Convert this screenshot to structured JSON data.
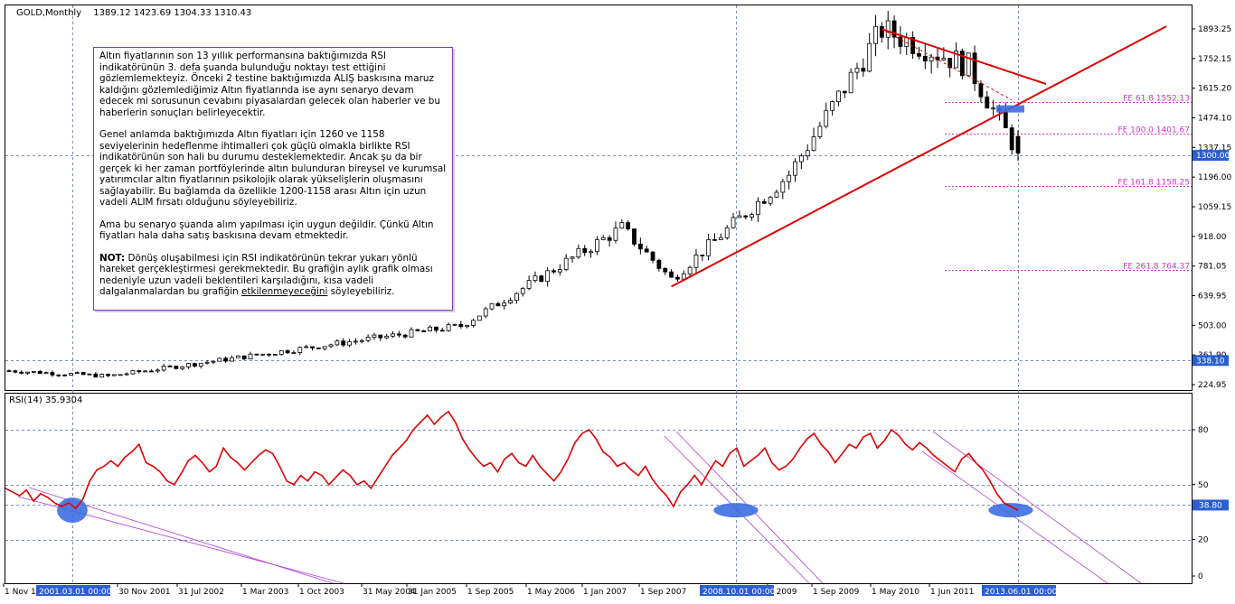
{
  "header": {
    "symbol": "GOLD,Monthly",
    "ohlc": "1389.12 1423.69 1304.33 1310.43"
  },
  "price_axis": {
    "ticks": [
      "1893.25",
      "1752.15",
      "1615.20",
      "1474.10",
      "1337.15",
      "1196.00",
      "1059.15",
      "918.00",
      "781.05",
      "639.95",
      "503.00",
      "361.90",
      "224.95"
    ]
  },
  "price_badges": [
    {
      "text": "1300.00",
      "value": 1300.0
    },
    {
      "text": "338.10",
      "value": 338.1
    }
  ],
  "fe_levels": [
    {
      "text": "FE 61.8 1552.13",
      "value": 1552.13
    },
    {
      "text": "FE 100.0 1401.67",
      "value": 1401.67
    },
    {
      "text": "FE 161.8 1158.25",
      "value": 1158.25
    },
    {
      "text": "FE 261.8 764.37",
      "value": 764.37
    }
  ],
  "rsi": {
    "label": "RSI(14) 35.9304",
    "ticks": [
      "80",
      "50",
      "20",
      "0"
    ],
    "badge": {
      "text": "38.80",
      "value": 38.8
    }
  },
  "time_axis": {
    "labels": [
      "1 Nov 19",
      "30 Nov 2001",
      "31 Jul 2002",
      "1 Mar 2003",
      "1 Oct 2003",
      "31 May 2004",
      "31 Jan 2005",
      "1 Sep 2005",
      "1 May 2006",
      "1 Jan 2007",
      "1 Sep 2007",
      "n 2009",
      "1 Sep 2009",
      "1 May 2010",
      "1 Jun 2011"
    ],
    "highlighted": [
      "2001.03.01 00:00",
      "2008.10.01 00:00",
      "2013.06.01 00:00"
    ]
  },
  "note": {
    "p1": "Altın fiyatlarının son 13 yıllık performansına baktığımızda RSI indikatörünün 3. defa şuanda bulunduğu noktayı test ettiğini gözlemlemekteyiz. Önceki 2 testine baktığımızda ALIŞ baskısına maruz kaldığını gözlemlediğimiz Altın fiyatlarında ise aynı senaryo devam edecek mi sorusunun cevabını piyasalardan gelecek olan haberler ve bu haberlerin sonuçları belirleyecektir.",
    "p2": "Genel anlamda baktığımızda Altın fiyatları için 1260 ve 1158 seviyelerinin hedeflenme ihtimalleri çok güçlü olmakla birlikte RSI indikatörünün son hali bu durumu desteklemektedir. Ancak şu da bir gerçek ki her zaman portföylerinde altın bulunduran bireysel ve kurumsal yatırımcılar altın fiyatlarının psikolojik olarak yükselişlerin oluşmasını sağlayabilir. Bu bağlamda da özellikle 1200-1158 arası Altın için uzun vadeli ALIM fırsatı olduğunu söyleyebiliriz.",
    "p3": "Ama bu senaryo şuanda alım yapılması için uygun değildir. Çünkü Altın fiyatları hala daha satış baskısına devam etmektedir.",
    "p4_bold": "NOT:",
    "p4_a": " Dönüş oluşabilmesi için RSI indikatörünün tekrar yukarı yönlü hareket gerçekleştirmesi gerekmektedir. Bu grafiğin aylık grafik olması nedeniyle uzun vadeli beklentileri karşıladığını, kısa vadeli dalgalanmalardan bu grafiğin ",
    "p4_u": "etkilenmeyeceğini",
    "p4_b": " söyleyebiliriz."
  },
  "colors": {
    "candle": "#000000",
    "trend": "#e00000",
    "rsi": "#e00000",
    "fe": "#cc33cc",
    "channel": "#b040d0",
    "highlight": "#3d6ee0",
    "badge": "#2b5fcf"
  },
  "chart_data": [
    {
      "type": "candlestick",
      "title": "GOLD,Monthly",
      "x_range": [
        "1999-11",
        "2013-06"
      ],
      "ylim": [
        224.95,
        1893.25
      ],
      "key_points": [
        {
          "x": "2001-03",
          "close": 265
        },
        {
          "x": "2005-12",
          "close": 500
        },
        {
          "x": "2008-02",
          "close": 960
        },
        {
          "x": "2008-10",
          "close": 720
        },
        {
          "x": "2010-05",
          "close": 1210
        },
        {
          "x": "2011-08",
          "close": 1890
        },
        {
          "x": "2012-10",
          "close": 1720
        },
        {
          "x": "2013-06",
          "close": 1310.43
        }
      ],
      "last_bar": {
        "open": 1389.12,
        "high": 1423.69,
        "low": 1304.33,
        "close": 1310.43
      }
    },
    {
      "type": "line",
      "title": "RSI(14) 35.9304",
      "ylim": [
        0,
        100
      ],
      "series": [
        {
          "values": [
            48,
            46,
            44,
            47,
            41,
            45,
            43,
            40,
            38,
            40,
            37,
            42,
            52,
            58,
            60,
            63,
            60,
            65,
            68,
            72,
            62,
            60,
            57,
            52,
            50,
            56,
            63,
            66,
            62,
            57,
            60,
            70,
            65,
            62,
            58,
            62,
            66,
            69,
            67,
            60,
            52,
            50,
            55,
            52,
            57,
            55,
            50,
            54,
            58,
            55,
            50,
            52,
            48,
            54,
            60,
            66,
            70,
            74,
            80,
            84,
            88,
            83,
            87,
            90,
            84,
            75,
            69,
            64,
            60,
            62,
            57,
            64,
            67,
            62,
            60,
            66,
            60,
            56,
            52,
            57,
            64,
            73,
            78,
            80,
            75,
            68,
            65,
            60,
            62,
            58,
            55,
            60,
            53,
            48,
            44,
            38,
            46,
            50,
            55,
            50,
            57,
            63,
            60,
            67,
            70,
            60,
            63,
            66,
            70,
            62,
            58,
            60,
            64,
            70,
            75,
            78,
            72,
            68,
            62,
            67,
            72,
            70,
            76,
            78,
            70,
            74,
            80,
            77,
            72,
            69,
            73,
            70,
            66,
            63,
            60,
            57,
            64,
            67,
            62,
            58,
            52,
            45,
            40,
            38,
            35.93
          ]
        }
      ]
    }
  ]
}
